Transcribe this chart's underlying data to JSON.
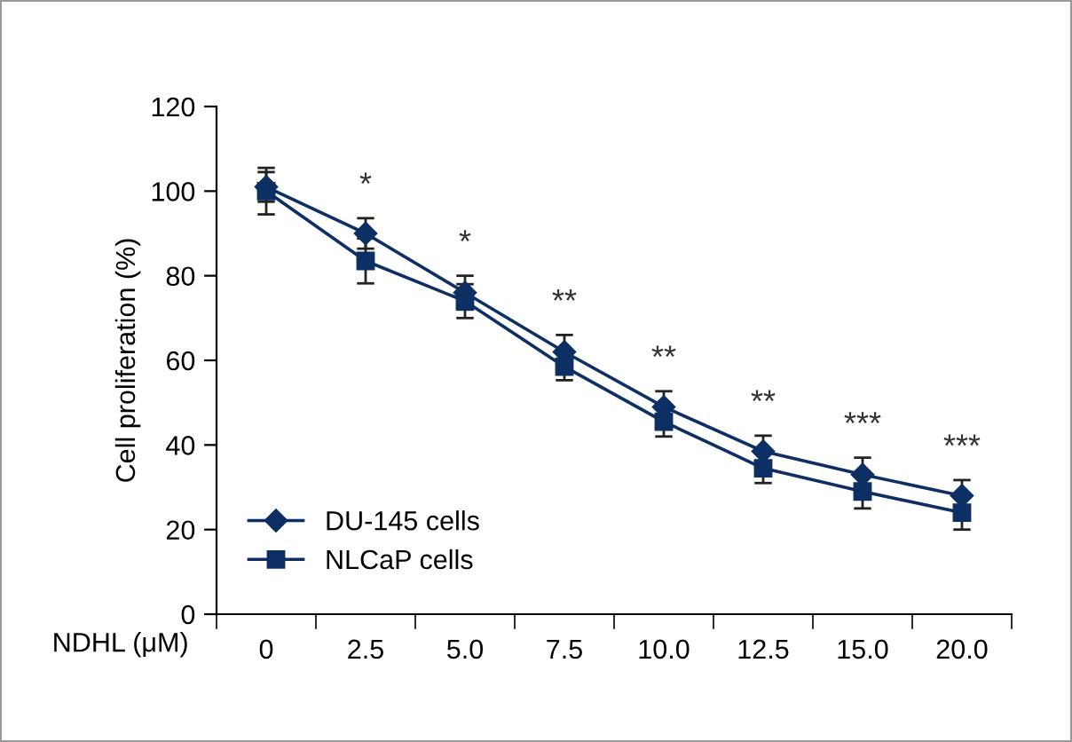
{
  "chart_data": {
    "type": "line",
    "xlabel": "NDHL (μM)",
    "ylabel": "Cell proliferation (%)",
    "categories": [
      "0",
      "2.5",
      "5.0",
      "7.5",
      "10.0",
      "12.5",
      "15.0",
      "20.0"
    ],
    "ylim": [
      0,
      120
    ],
    "yticks": [
      0,
      20,
      40,
      60,
      80,
      100,
      120
    ],
    "grid": false,
    "legend": "bottom left",
    "series": [
      {
        "name": "DU-145 cells",
        "color": "#0d2f63",
        "marker": "diamond",
        "values": [
          101,
          90,
          76,
          62,
          49,
          38.5,
          33,
          28
        ],
        "errors": [
          3.5,
          3.6,
          4,
          4,
          3.7,
          3.7,
          4,
          3.7
        ]
      },
      {
        "name": "NLCaP cells",
        "color": "#0d2f63",
        "marker": "square",
        "values": [
          100,
          83.5,
          74,
          58.5,
          45.5,
          34.5,
          29,
          24
        ],
        "errors": [
          5.5,
          5.3,
          4,
          3.2,
          3.5,
          3.5,
          4,
          4
        ]
      }
    ],
    "annotations": [
      "*",
      "*",
      "**",
      "**",
      "**",
      "***",
      "***"
    ]
  }
}
